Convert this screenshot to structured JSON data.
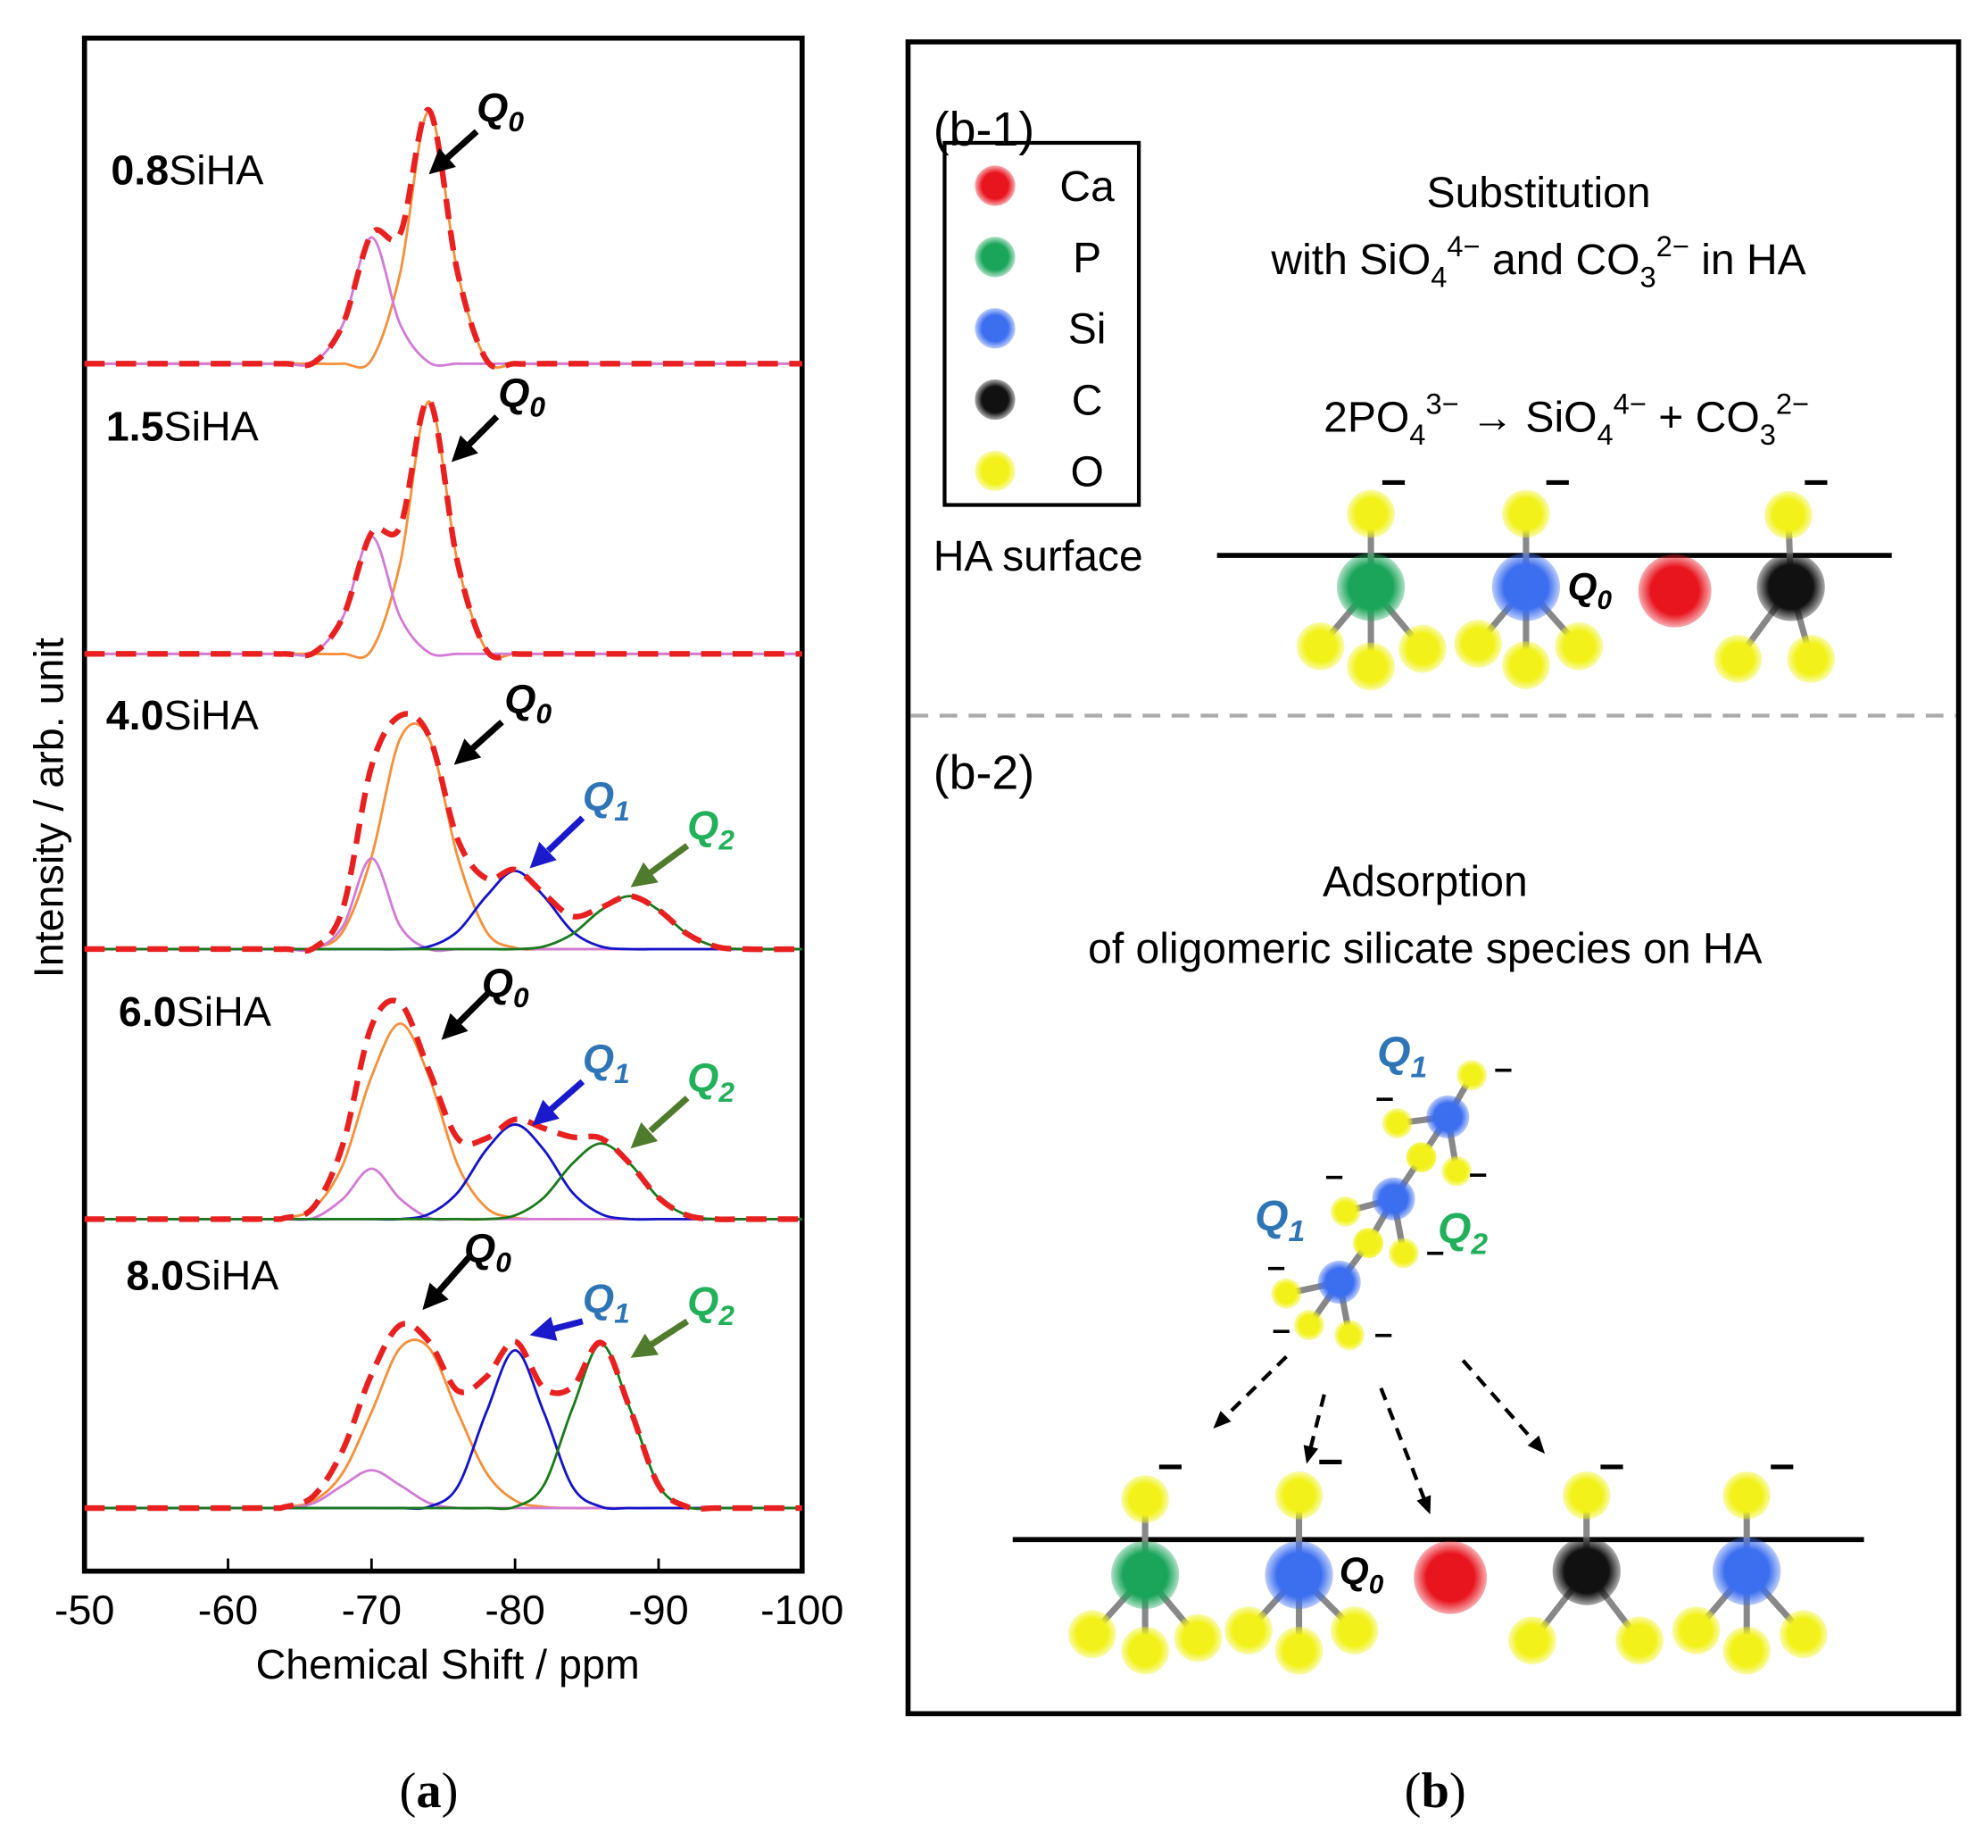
{
  "chart_data": {
    "type": "line",
    "xlabel": "Chemical Shift / ppm",
    "ylabel": "Intensity / arb. unit",
    "xlim": [
      -50,
      -100
    ],
    "xticks": [
      -50,
      -60,
      -70,
      -80,
      -90,
      -100
    ],
    "x": [
      -50,
      -62,
      -64,
      -66,
      -68,
      -70,
      -72,
      -74,
      -76,
      -78,
      -80,
      -82,
      -84,
      -86,
      -88,
      -90,
      -92,
      -94,
      -96,
      -100
    ],
    "panels": [
      {
        "label": {
          "bold": "0.8",
          "text": "SiHA"
        },
        "curves": [
          {
            "color": "#f4903c",
            "dashed": false,
            "values": [
              0,
              0,
              0,
              0,
              0,
              0.03,
              0.72,
              2.0,
              0.72,
              0.03,
              0,
              0,
              0,
              0,
              0,
              0,
              0,
              0,
              0,
              0
            ]
          },
          {
            "color": "#d27ad6",
            "dashed": false,
            "values": [
              0,
              0,
              0,
              0.01,
              0.31,
              1.0,
              0.31,
              0.01,
              0,
              0,
              0,
              0,
              0,
              0,
              0,
              0,
              0,
              0,
              0,
              0
            ]
          },
          {
            "color": "#e82020",
            "dashed": true,
            "values": [
              0,
              0,
              0,
              0.01,
              0.31,
              1.03,
              1.03,
              2.01,
              0.72,
              0.03,
              0,
              0,
              0,
              0,
              0,
              0,
              0,
              0,
              0,
              0
            ]
          }
        ],
        "annotations": [
          {
            "text": "Q",
            "sub": "0",
            "color": "#000000",
            "arrow_color": "#000000"
          }
        ]
      },
      {
        "label": {
          "bold": "1.5",
          "text": "SiHA"
        },
        "curves": [
          {
            "color": "#f4903c",
            "dashed": false,
            "values": [
              0,
              0,
              0,
              0,
              0,
              0.03,
              0.72,
              2.0,
              0.72,
              0.03,
              0,
              0,
              0,
              0,
              0,
              0,
              0,
              0,
              0,
              0
            ]
          },
          {
            "color": "#d27ad6",
            "dashed": false,
            "values": [
              0,
              0,
              0,
              0.01,
              0.29,
              0.93,
              0.29,
              0.01,
              0,
              0,
              0,
              0,
              0,
              0,
              0,
              0,
              0,
              0,
              0,
              0
            ]
          },
          {
            "color": "#e82020",
            "dashed": true,
            "values": [
              0,
              0,
              0,
              0.01,
              0.29,
              0.96,
              1.01,
              2.01,
              0.72,
              0.03,
              0,
              0,
              0,
              0,
              0,
              0,
              0,
              0,
              0,
              0
            ]
          }
        ],
        "annotations": [
          {
            "text": "Q",
            "sub": "0",
            "color": "#000000",
            "arrow_color": "#000000"
          }
        ]
      },
      {
        "label": {
          "bold": "4.0",
          "text": "SiHA"
        },
        "curves": [
          {
            "color": "#f4903c",
            "dashed": false,
            "values": [
              0,
              0,
              0,
              0.01,
              0.14,
              0.73,
              1.67,
              1.67,
              0.73,
              0.14,
              0.01,
              0,
              0,
              0,
              0,
              0,
              0,
              0,
              0,
              0
            ]
          },
          {
            "color": "#d27ad6",
            "dashed": false,
            "values": [
              0,
              0,
              0,
              0,
              0.18,
              0.72,
              0.18,
              0,
              0,
              0,
              0,
              0,
              0,
              0,
              0,
              0,
              0,
              0,
              0,
              0
            ]
          },
          {
            "color": "#1414c8",
            "dashed": false,
            "values": [
              0,
              0,
              0,
              0,
              0,
              0,
              0,
              0.02,
              0.14,
              0.42,
              0.62,
              0.42,
              0.14,
              0.02,
              0,
              0,
              0,
              0,
              0,
              0
            ]
          },
          {
            "color": "#1a7a1a",
            "dashed": false,
            "values": [
              0,
              0,
              0,
              0,
              0,
              0,
              0,
              0,
              0,
              0,
              0,
              0.02,
              0.12,
              0.31,
              0.42,
              0.31,
              0.12,
              0.02,
              0,
              0
            ]
          },
          {
            "color": "#e82020",
            "dashed": true,
            "values": [
              0,
              0,
              0,
              0.01,
              0.32,
              1.45,
              1.85,
              1.69,
              0.87,
              0.56,
              0.63,
              0.44,
              0.26,
              0.33,
              0.42,
              0.31,
              0.12,
              0.02,
              0,
              0
            ]
          }
        ],
        "annotations": [
          {
            "text": "Q",
            "sub": "0",
            "color": "#000000",
            "arrow_color": "#000000"
          },
          {
            "text": "Q",
            "sub": "1",
            "color": "#2e75b6",
            "arrow_color": "#1a1acc"
          },
          {
            "text": "Q",
            "sub": "2",
            "color": "#22b05a",
            "arrow_color": "#4f7b2c"
          }
        ]
      },
      {
        "label": {
          "bold": "6.0",
          "text": "SiHA"
        },
        "curves": [
          {
            "color": "#f4903c",
            "dashed": false,
            "values": [
              0,
              0,
              0.01,
              0.09,
              0.43,
              1.13,
              1.55,
              1.13,
              0.43,
              0.09,
              0.01,
              0,
              0,
              0,
              0,
              0,
              0,
              0,
              0,
              0
            ]
          },
          {
            "color": "#d27ad6",
            "dashed": false,
            "values": [
              0,
              0,
              0,
              0.01,
              0.16,
              0.4,
              0.16,
              0.01,
              0,
              0,
              0,
              0,
              0,
              0,
              0,
              0,
              0,
              0,
              0,
              0
            ]
          },
          {
            "color": "#1414c8",
            "dashed": false,
            "values": [
              0,
              0,
              0,
              0,
              0,
              0,
              0,
              0.04,
              0.21,
              0.55,
              0.75,
              0.55,
              0.21,
              0.04,
              0,
              0,
              0,
              0,
              0,
              0
            ]
          },
          {
            "color": "#1a7a1a",
            "dashed": false,
            "values": [
              0,
              0,
              0,
              0,
              0,
              0,
              0,
              0,
              0,
              0,
              0.03,
              0.17,
              0.44,
              0.6,
              0.44,
              0.17,
              0.03,
              0,
              0,
              0
            ]
          },
          {
            "color": "#e82020",
            "dashed": true,
            "values": [
              0,
              0,
              0.01,
              0.1,
              0.59,
              1.53,
              1.71,
              1.18,
              0.64,
              0.64,
              0.79,
              0.72,
              0.65,
              0.64,
              0.44,
              0.17,
              0.03,
              0,
              0,
              0
            ]
          }
        ],
        "annotations": [
          {
            "text": "Q",
            "sub": "0",
            "color": "#000000",
            "arrow_color": "#000000"
          },
          {
            "text": "Q",
            "sub": "1",
            "color": "#2e75b6",
            "arrow_color": "#1a1acc"
          },
          {
            "text": "Q",
            "sub": "2",
            "color": "#22b05a",
            "arrow_color": "#4f7b2c"
          }
        ]
      },
      {
        "label": {
          "bold": "8.0",
          "text": "SiHA"
        },
        "curves": [
          {
            "color": "#f4903c",
            "dashed": false,
            "values": [
              0,
              0,
              0.01,
              0.06,
              0.28,
              0.76,
              1.27,
              1.27,
              0.76,
              0.28,
              0.06,
              0.01,
              0,
              0,
              0,
              0,
              0,
              0,
              0,
              0
            ]
          },
          {
            "color": "#d27ad6",
            "dashed": false,
            "values": [
              0,
              0,
              0,
              0.04,
              0.18,
              0.3,
              0.18,
              0.04,
              0,
              0,
              0,
              0,
              0,
              0,
              0,
              0,
              0,
              0,
              0,
              0
            ]
          },
          {
            "color": "#1414c8",
            "dashed": false,
            "values": [
              0,
              0,
              0,
              0,
              0,
              0,
              0,
              0.01,
              0.17,
              0.76,
              1.25,
              0.76,
              0.17,
              0.01,
              0,
              0,
              0,
              0,
              0,
              0
            ]
          },
          {
            "color": "#1a7a1a",
            "dashed": false,
            "values": [
              0,
              0,
              0,
              0,
              0,
              0,
              0,
              0,
              0,
              0,
              0.01,
              0.18,
              0.79,
              1.3,
              0.79,
              0.18,
              0.01,
              0,
              0,
              0
            ]
          },
          {
            "color": "#e82020",
            "dashed": true,
            "values": [
              0,
              0,
              0.01,
              0.1,
              0.46,
              1.06,
              1.45,
              1.32,
              0.93,
              1.04,
              1.32,
              0.95,
              0.96,
              1.31,
              0.79,
              0.18,
              0.01,
              0,
              0,
              0
            ]
          }
        ],
        "annotations": [
          {
            "text": "Q",
            "sub": "0",
            "color": "#000000",
            "arrow_color": "#000000"
          },
          {
            "text": "Q",
            "sub": "1",
            "color": "#2e75b6",
            "arrow_color": "#1a1acc"
          },
          {
            "text": "Q",
            "sub": "2",
            "color": "#22b05a",
            "arrow_color": "#4f7b2c"
          }
        ]
      }
    ],
    "caption": [
      "(",
      "a",
      ")"
    ]
  },
  "panel_b": {
    "caption": [
      "(",
      "b",
      ")"
    ],
    "legend": [
      {
        "label": "Ca",
        "color": "#e8141e"
      },
      {
        "label": "P",
        "color": "#1aa55a"
      },
      {
        "label": "Si",
        "color": "#3c6ef0"
      },
      {
        "label": "C",
        "color": "#111111"
      },
      {
        "label": "O",
        "color": "#f2f21a"
      }
    ],
    "charge": "–",
    "section1": {
      "label": "(b-1)",
      "title": [
        [
          {
            "text": "Substitution"
          }
        ],
        [
          {
            "text": "with SiO"
          },
          {
            "text": "4",
            "pos": "sub"
          },
          {
            "text": "4−",
            "pos": "sup"
          },
          {
            "text": " and CO"
          },
          {
            "text": "3",
            "pos": "sub"
          },
          {
            "text": "2−",
            "pos": "sup"
          },
          {
            "text": " in HA"
          }
        ]
      ],
      "equation": [
        {
          "text": "2PO"
        },
        {
          "text": "4",
          "pos": "sub"
        },
        {
          "text": "3−",
          "pos": "sup"
        },
        {
          "text": " → SiO"
        },
        {
          "text": "4",
          "pos": "sub"
        },
        {
          "text": "4−",
          "pos": "sup"
        },
        {
          "text": " + CO"
        },
        {
          "text": "3",
          "pos": "sub"
        },
        {
          "text": "2−",
          "pos": "sup"
        }
      ],
      "surface_label": "HA surface",
      "site_label": {
        "text": "Q",
        "sub": "0",
        "color": "#000000"
      }
    },
    "section2": {
      "label": "(b-2)",
      "title": [
        [
          {
            "text": "Adsorption"
          }
        ],
        [
          {
            "text": "of oligomeric silicate species on HA"
          }
        ]
      ],
      "species_labels": [
        {
          "text": "Q",
          "sub": "1",
          "color": "#2e75b6"
        },
        {
          "text": "Q",
          "sub": "2",
          "color": "#22b05a"
        },
        {
          "text": "Q",
          "sub": "1",
          "color": "#2e75b6"
        }
      ],
      "site_label": {
        "text": "Q",
        "sub": "0",
        "color": "#000000"
      }
    }
  }
}
